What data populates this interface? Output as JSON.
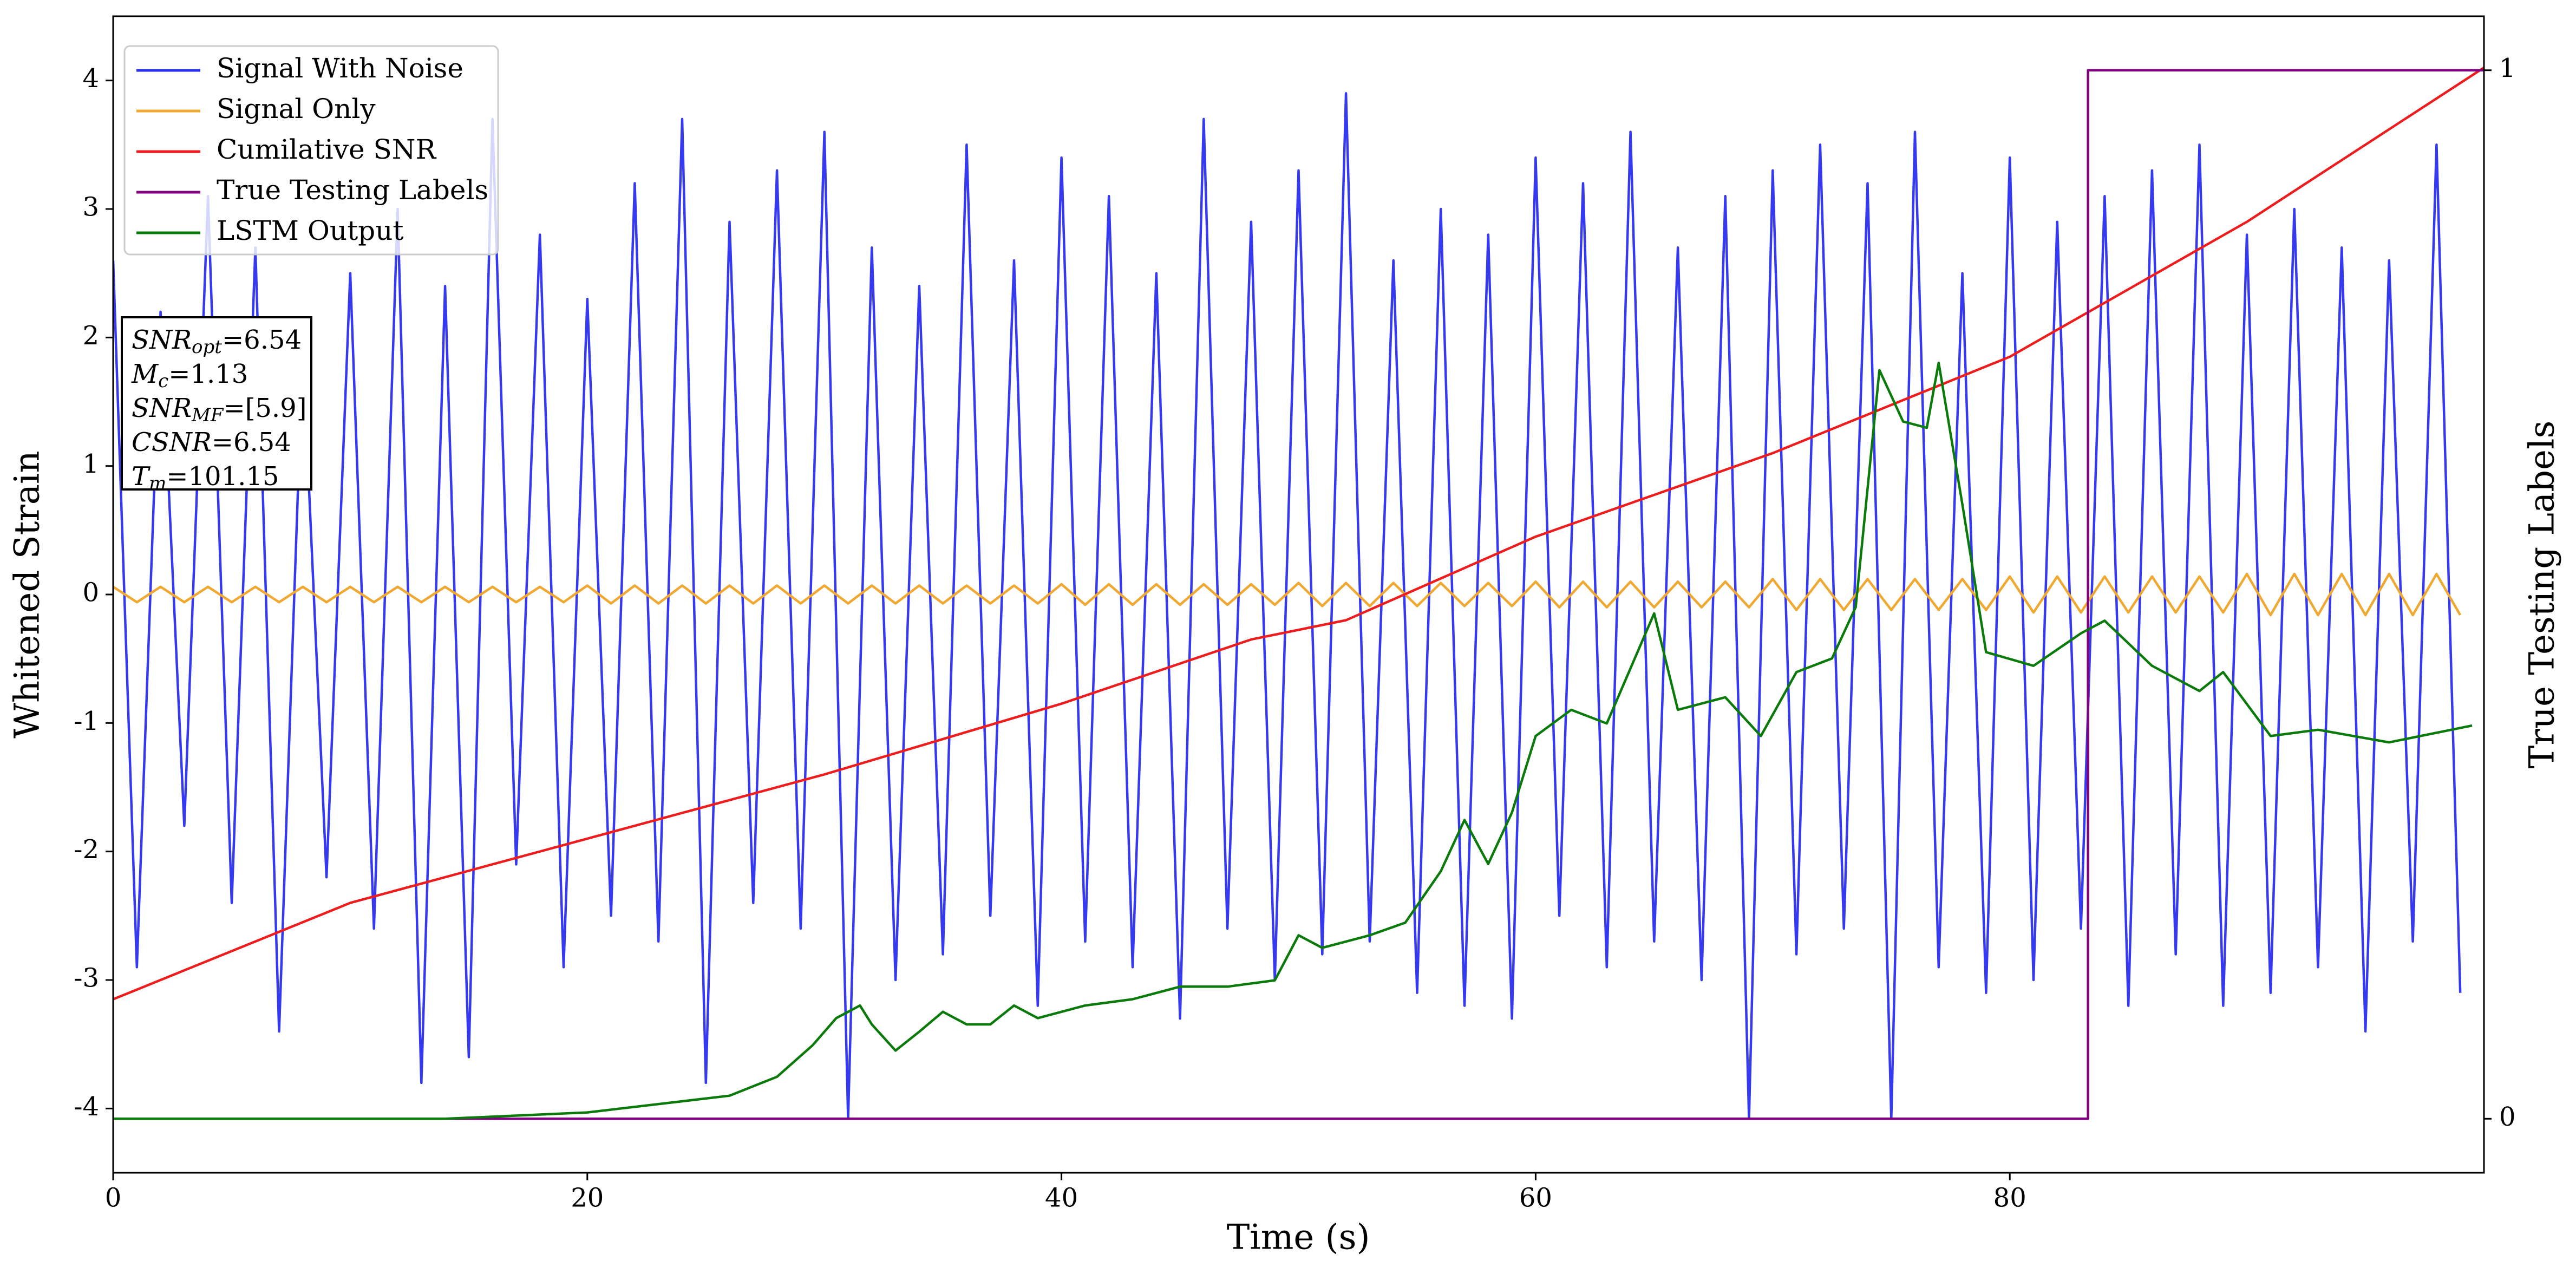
{
  "chart_data": {
    "type": "line",
    "x_label": "Time (s)",
    "y_label": "Whitened Strain",
    "y2_label": "True Testing Labels",
    "xlim": [
      0,
      100
    ],
    "xticks": [
      0,
      20,
      40,
      60,
      80
    ],
    "ylim": [
      -4.5,
      4.5
    ],
    "yticks": [
      -4,
      -3,
      -2,
      -1,
      0,
      1,
      2,
      3,
      4
    ],
    "y2lim": [
      -0.0515,
      1.0515
    ],
    "y2ticks": [
      0,
      1
    ],
    "legend": "upper-left",
    "x": [
      0,
      1,
      2,
      3,
      4,
      5,
      6,
      7,
      8,
      9,
      10,
      11,
      12,
      13,
      14,
      15,
      16,
      17,
      18,
      19,
      20,
      21,
      22,
      23,
      24,
      25,
      26,
      27,
      28,
      29,
      30,
      31,
      32,
      33,
      34,
      35,
      36,
      37,
      38,
      39,
      40,
      41,
      42,
      43,
      44,
      45,
      46,
      47,
      48,
      49,
      50,
      51,
      52,
      53,
      54,
      55,
      56,
      57,
      58,
      59,
      60,
      61,
      62,
      63,
      64,
      65,
      66,
      67,
      68,
      69,
      70,
      71,
      72,
      73,
      74,
      75,
      76,
      77,
      78,
      79,
      80,
      81,
      82,
      83,
      84,
      85,
      86,
      87,
      88,
      89,
      90,
      91,
      92,
      93,
      94,
      95,
      96,
      97,
      98,
      99
    ],
    "series": [
      {
        "name": "Signal With Noise",
        "color": "#2a2ff0",
        "values": [
          2.6,
          -2.9,
          2.2,
          -1.8,
          3.1,
          -2.4,
          2.7,
          -3.4,
          1.9,
          -2.2,
          2.5,
          -2.6,
          3.0,
          -3.8,
          2.4,
          -3.6,
          3.7,
          -2.1,
          2.8,
          -2.9,
          2.3,
          -2.5,
          3.2,
          -2.7,
          3.7,
          -3.8,
          2.9,
          -2.4,
          3.3,
          -2.6,
          3.6,
          -4.08,
          2.7,
          -3.0,
          2.4,
          -2.8,
          3.5,
          -2.5,
          2.6,
          -3.2,
          3.4,
          -2.7,
          3.1,
          -2.9,
          2.5,
          -3.3,
          3.7,
          -2.6,
          2.9,
          -3.0,
          3.3,
          -2.8,
          3.9,
          -2.7,
          2.6,
          -3.1,
          3.0,
          -3.2,
          2.8,
          -3.3,
          3.4,
          -2.5,
          3.2,
          -2.9,
          3.6,
          -2.7,
          2.7,
          -3.0,
          3.1,
          -4.08,
          3.3,
          -2.8,
          3.5,
          -2.6,
          3.2,
          -4.08,
          3.6,
          -2.9,
          2.5,
          -3.1,
          3.4,
          -3.0,
          2.9,
          -2.6,
          3.1,
          -3.2,
          3.3,
          -2.8,
          3.5,
          -3.2,
          2.8,
          -3.1,
          3.0,
          -2.9,
          2.7,
          -3.4,
          2.6,
          -2.7,
          3.5,
          -3.1
        ]
      },
      {
        "name": "Signal Only",
        "color": "#f0a830",
        "values": [
          0.06,
          -0.06,
          0.06,
          -0.06,
          0.06,
          -0.06,
          0.06,
          -0.06,
          0.06,
          -0.06,
          0.06,
          -0.06,
          0.06,
          -0.06,
          0.06,
          -0.06,
          0.06,
          -0.06,
          0.06,
          -0.06,
          0.07,
          -0.07,
          0.07,
          -0.07,
          0.07,
          -0.07,
          0.07,
          -0.07,
          0.07,
          -0.07,
          0.07,
          -0.07,
          0.07,
          -0.07,
          0.07,
          -0.07,
          0.07,
          -0.07,
          0.07,
          -0.07,
          0.08,
          -0.08,
          0.08,
          -0.08,
          0.08,
          -0.08,
          0.08,
          -0.08,
          0.08,
          -0.08,
          0.09,
          -0.09,
          0.09,
          -0.09,
          0.09,
          -0.09,
          0.09,
          -0.09,
          0.09,
          -0.09,
          0.1,
          -0.1,
          0.1,
          -0.1,
          0.1,
          -0.1,
          0.1,
          -0.1,
          0.1,
          -0.1,
          0.12,
          -0.12,
          0.12,
          -0.12,
          0.12,
          -0.12,
          0.12,
          -0.12,
          0.12,
          -0.12,
          0.14,
          -0.14,
          0.14,
          -0.14,
          0.14,
          -0.14,
          0.14,
          -0.14,
          0.14,
          -0.14,
          0.16,
          -0.16,
          0.16,
          -0.16,
          0.16,
          -0.16,
          0.16,
          -0.16,
          0.16,
          -0.16
        ]
      },
      {
        "name": "Cumilative SNR",
        "color": "#ee1c1c",
        "x": [
          0,
          10,
          20,
          30,
          40,
          48,
          52,
          60,
          70,
          80,
          90,
          100
        ],
        "values": [
          -3.15,
          -2.4,
          -1.9,
          -1.4,
          -0.85,
          -0.35,
          -0.2,
          0.45,
          1.1,
          1.85,
          2.9,
          4.1
        ]
      },
      {
        "name": "True Testing Labels",
        "color": "#800080",
        "axis": "y2",
        "x": [
          0,
          83.3,
          83.3,
          100
        ],
        "values": [
          0,
          0,
          1,
          1
        ]
      },
      {
        "name": "LSTM Output",
        "color": "#0a7a0a",
        "axis": "y2",
        "x": [
          0,
          14,
          16,
          20,
          26,
          28,
          29.5,
          30.5,
          31.5,
          32,
          33,
          34,
          35,
          36,
          37,
          38,
          39,
          41,
          43,
          45,
          47,
          49,
          50,
          51,
          53,
          54.5,
          56,
          57,
          58,
          59,
          60,
          61.5,
          63,
          65,
          66,
          68,
          69.5,
          71,
          72.5,
          73.5,
          74.5,
          75.5,
          76.5,
          77,
          78,
          79,
          81,
          83,
          84,
          86,
          88,
          89,
          91,
          93,
          96,
          99.5
        ],
        "values": [
          0,
          0,
          0.002,
          0.006,
          0.022,
          0.04,
          0.07,
          0.096,
          0.108,
          0.09,
          0.065,
          0.083,
          0.102,
          0.09,
          0.09,
          0.108,
          0.096,
          0.108,
          0.114,
          0.126,
          0.126,
          0.132,
          0.175,
          0.163,
          0.175,
          0.187,
          0.236,
          0.285,
          0.243,
          0.292,
          0.365,
          0.39,
          0.377,
          0.482,
          0.39,
          0.402,
          0.365,
          0.426,
          0.439,
          0.488,
          0.714,
          0.665,
          0.659,
          0.721,
          0.586,
          0.445,
          0.432,
          0.463,
          0.475,
          0.432,
          0.408,
          0.426,
          0.365,
          0.371,
          0.359,
          0.375
        ]
      }
    ],
    "annotations": [
      {
        "symbol": "SNR",
        "sub": "opt",
        "text": "=6.54"
      },
      {
        "symbol": "M",
        "sub": "c",
        "text": "=1.13"
      },
      {
        "symbol": "SNR",
        "sub": "MF",
        "text": "=[5.9]"
      },
      {
        "symbol": "CSNR",
        "text": "=6.54"
      },
      {
        "symbol": "T",
        "sub": "m",
        "text": "=101.15"
      }
    ]
  }
}
